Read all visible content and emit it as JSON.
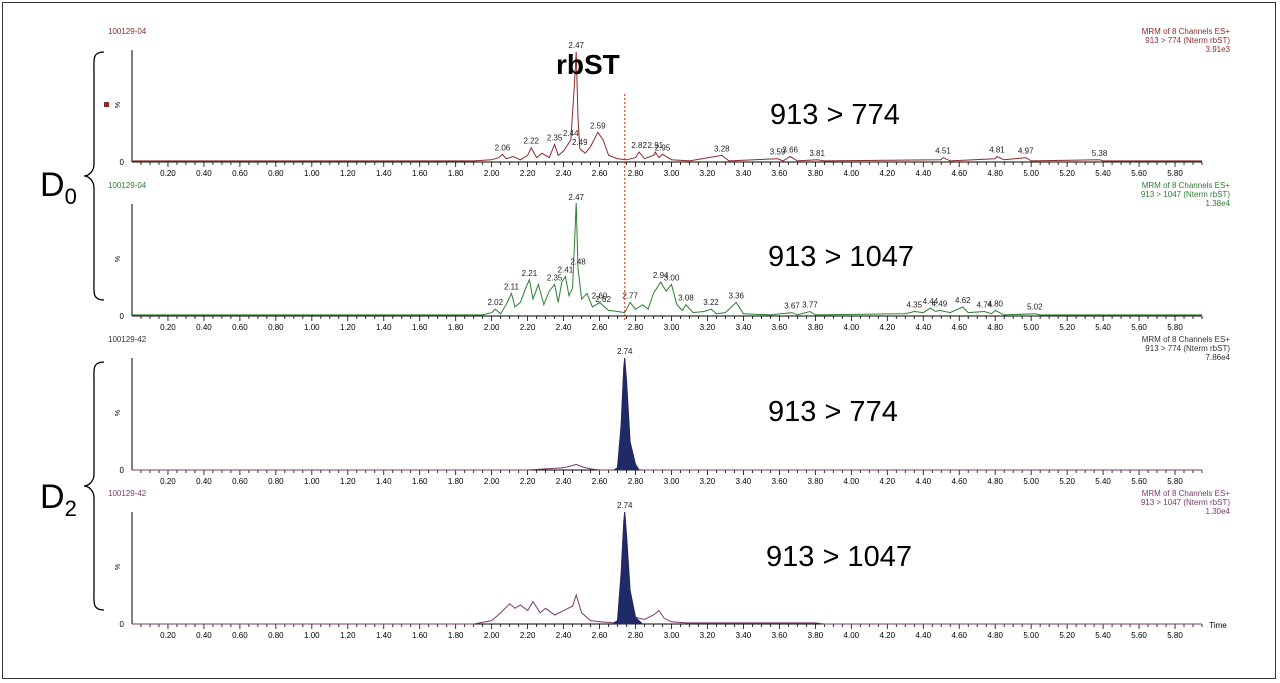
{
  "figure": {
    "compound_label": "rbST",
    "group_labels": [
      {
        "label": "D",
        "subscript": "0"
      },
      {
        "label": "D",
        "subscript": "2"
      }
    ],
    "x_axis_title": "Time"
  },
  "colors": {
    "d0_trace_774": "#8b2a2a",
    "d0_trace_1047": "#2e7d32",
    "d2_trace": "#7b3a6a",
    "peak_fill": "#1f2a66",
    "rt_marker": "#d9442b",
    "axis": "#000000",
    "header_text": "#8b2a2a",
    "header_text_green": "#2e7d32"
  },
  "chart_data": [
    {
      "type": "line",
      "sample": "100129-04",
      "transition": "913 > 774",
      "header": [
        "MRM of 8 Channels ES+",
        "913 > 774 (Nterm rbST)",
        "3.91e3"
      ],
      "ylabel": "%",
      "ytick": "0",
      "xlim": [
        0.0,
        5.95
      ],
      "ylim": [
        0,
        100
      ],
      "xticks": [
        "0.20",
        "0.40",
        "0.60",
        "0.80",
        "1.00",
        "1.20",
        "1.40",
        "1.60",
        "1.80",
        "2.00",
        "2.20",
        "2.40",
        "2.60",
        "2.80",
        "3.00",
        "3.20",
        "3.40",
        "3.60",
        "3.80",
        "4.00",
        "4.20",
        "4.40",
        "4.60",
        "4.80",
        "5.00",
        "5.20",
        "5.40",
        "5.60",
        "5.80"
      ],
      "peak_labels": [
        {
          "rt": 2.06,
          "text": "2.06"
        },
        {
          "rt": 2.22,
          "text": "2.22"
        },
        {
          "rt": 2.35,
          "text": "2.35"
        },
        {
          "rt": 2.44,
          "text": "2.44"
        },
        {
          "rt": 2.47,
          "text": "2.47"
        },
        {
          "rt": 2.49,
          "text": "2.49"
        },
        {
          "rt": 2.59,
          "text": "2.59"
        },
        {
          "rt": 2.82,
          "text": "2.82"
        },
        {
          "rt": 2.91,
          "text": "2.91"
        },
        {
          "rt": 2.95,
          "text": "2.95"
        },
        {
          "rt": 3.28,
          "text": "3.28"
        },
        {
          "rt": 3.59,
          "text": "3.59"
        },
        {
          "rt": 3.66,
          "text": "3.66"
        },
        {
          "rt": 3.81,
          "text": "3.81"
        },
        {
          "rt": 4.51,
          "text": "4.51"
        },
        {
          "rt": 4.81,
          "text": "4.81"
        },
        {
          "rt": 4.97,
          "text": "4.97"
        },
        {
          "rt": 5.38,
          "text": "5.38"
        }
      ],
      "trace": [
        [
          0,
          1
        ],
        [
          1.9,
          1
        ],
        [
          2.0,
          2
        ],
        [
          2.04,
          4
        ],
        [
          2.06,
          7
        ],
        [
          2.08,
          3
        ],
        [
          2.12,
          5
        ],
        [
          2.16,
          2
        ],
        [
          2.2,
          6
        ],
        [
          2.22,
          13
        ],
        [
          2.25,
          4
        ],
        [
          2.28,
          8
        ],
        [
          2.32,
          4
        ],
        [
          2.35,
          16
        ],
        [
          2.37,
          6
        ],
        [
          2.4,
          10
        ],
        [
          2.44,
          20
        ],
        [
          2.46,
          70
        ],
        [
          2.47,
          100
        ],
        [
          2.48,
          40
        ],
        [
          2.49,
          12
        ],
        [
          2.52,
          8
        ],
        [
          2.55,
          14
        ],
        [
          2.59,
          27
        ],
        [
          2.62,
          20
        ],
        [
          2.65,
          6
        ],
        [
          2.7,
          3
        ],
        [
          2.75,
          2
        ],
        [
          2.8,
          4
        ],
        [
          2.82,
          9
        ],
        [
          2.85,
          3
        ],
        [
          2.9,
          6
        ],
        [
          2.91,
          9
        ],
        [
          2.93,
          4
        ],
        [
          2.95,
          7
        ],
        [
          3.0,
          2
        ],
        [
          3.1,
          1
        ],
        [
          3.28,
          6
        ],
        [
          3.32,
          1
        ],
        [
          3.59,
          3
        ],
        [
          3.62,
          1
        ],
        [
          3.66,
          5
        ],
        [
          3.7,
          1
        ],
        [
          3.81,
          2
        ],
        [
          3.85,
          1
        ],
        [
          4.5,
          2
        ],
        [
          4.51,
          4
        ],
        [
          4.55,
          1
        ],
        [
          4.8,
          3
        ],
        [
          4.81,
          5
        ],
        [
          4.85,
          2
        ],
        [
          4.97,
          4
        ],
        [
          5.0,
          1
        ],
        [
          5.38,
          2
        ],
        [
          5.4,
          1
        ],
        [
          5.95,
          1
        ]
      ]
    },
    {
      "type": "line",
      "sample": "100129-04",
      "transition": "913 > 1047",
      "header": [
        "MRM of 8 Channels ES+",
        "913 > 1047 (Nterm rbST)",
        "1.38e4"
      ],
      "ylabel": "%",
      "ytick": "0",
      "xlim": [
        0.0,
        5.95
      ],
      "ylim": [
        0,
        100
      ],
      "xticks": [
        "0.20",
        "0.40",
        "0.60",
        "0.80",
        "1.00",
        "1.20",
        "1.40",
        "1.60",
        "1.80",
        "2.00",
        "2.20",
        "2.40",
        "2.60",
        "2.80",
        "3.00",
        "3.20",
        "3.40",
        "3.60",
        "3.80",
        "4.00",
        "4.20",
        "4.40",
        "4.60",
        "4.80",
        "5.00",
        "5.20",
        "5.40",
        "5.60",
        "5.80"
      ],
      "peak_labels": [
        {
          "rt": 2.02,
          "text": "2.02"
        },
        {
          "rt": 2.11,
          "text": "2.11"
        },
        {
          "rt": 2.21,
          "text": "2.21"
        },
        {
          "rt": 2.35,
          "text": "2.35"
        },
        {
          "rt": 2.41,
          "text": "2.41"
        },
        {
          "rt": 2.47,
          "text": "2.47"
        },
        {
          "rt": 2.48,
          "text": "2.48"
        },
        {
          "rt": 2.6,
          "text": "2.60"
        },
        {
          "rt": 2.62,
          "text": "2.62"
        },
        {
          "rt": 2.77,
          "text": "2.77"
        },
        {
          "rt": 2.94,
          "text": "2.94"
        },
        {
          "rt": 3.0,
          "text": "3.00"
        },
        {
          "rt": 3.08,
          "text": "3.08"
        },
        {
          "rt": 3.22,
          "text": "3.22"
        },
        {
          "rt": 3.36,
          "text": "3.36"
        },
        {
          "rt": 3.67,
          "text": "3.67"
        },
        {
          "rt": 3.77,
          "text": "3.77"
        },
        {
          "rt": 4.35,
          "text": "4.35"
        },
        {
          "rt": 4.44,
          "text": "4.44"
        },
        {
          "rt": 4.49,
          "text": "4.49"
        },
        {
          "rt": 4.62,
          "text": "4.62"
        },
        {
          "rt": 4.74,
          "text": "4.74"
        },
        {
          "rt": 4.8,
          "text": "4.80"
        },
        {
          "rt": 5.02,
          "text": "5.02"
        }
      ],
      "trace": [
        [
          0,
          1
        ],
        [
          1.95,
          1
        ],
        [
          2.0,
          3
        ],
        [
          2.02,
          6
        ],
        [
          2.05,
          2
        ],
        [
          2.08,
          10
        ],
        [
          2.11,
          20
        ],
        [
          2.13,
          8
        ],
        [
          2.16,
          12
        ],
        [
          2.19,
          25
        ],
        [
          2.21,
          32
        ],
        [
          2.23,
          15
        ],
        [
          2.26,
          28
        ],
        [
          2.29,
          10
        ],
        [
          2.32,
          22
        ],
        [
          2.35,
          28
        ],
        [
          2.37,
          12
        ],
        [
          2.39,
          30
        ],
        [
          2.41,
          35
        ],
        [
          2.43,
          18
        ],
        [
          2.45,
          25
        ],
        [
          2.47,
          100
        ],
        [
          2.48,
          42
        ],
        [
          2.5,
          15
        ],
        [
          2.53,
          20
        ],
        [
          2.56,
          8
        ],
        [
          2.6,
          12
        ],
        [
          2.62,
          9
        ],
        [
          2.65,
          5
        ],
        [
          2.7,
          4
        ],
        [
          2.74,
          3
        ],
        [
          2.77,
          12
        ],
        [
          2.8,
          6
        ],
        [
          2.84,
          10
        ],
        [
          2.87,
          6
        ],
        [
          2.9,
          20
        ],
        [
          2.94,
          30
        ],
        [
          2.97,
          22
        ],
        [
          3.0,
          28
        ],
        [
          3.03,
          10
        ],
        [
          3.06,
          5
        ],
        [
          3.08,
          10
        ],
        [
          3.12,
          3
        ],
        [
          3.18,
          4
        ],
        [
          3.22,
          6
        ],
        [
          3.25,
          2
        ],
        [
          3.3,
          3
        ],
        [
          3.36,
          12
        ],
        [
          3.4,
          2
        ],
        [
          3.55,
          1
        ],
        [
          3.67,
          3
        ],
        [
          3.7,
          1
        ],
        [
          3.77,
          4
        ],
        [
          3.8,
          1
        ],
        [
          4.3,
          2
        ],
        [
          4.35,
          4
        ],
        [
          4.4,
          3
        ],
        [
          4.44,
          7
        ],
        [
          4.47,
          4
        ],
        [
          4.49,
          5
        ],
        [
          4.55,
          3
        ],
        [
          4.62,
          8
        ],
        [
          4.65,
          3
        ],
        [
          4.74,
          4
        ],
        [
          4.78,
          2
        ],
        [
          4.8,
          5
        ],
        [
          4.85,
          1
        ],
        [
          5.02,
          2
        ],
        [
          5.05,
          1
        ],
        [
          5.95,
          1
        ]
      ]
    },
    {
      "type": "area",
      "sample": "100129-42",
      "transition": "913 > 774",
      "header": [
        "MRM of 8 Channels ES+",
        "913 > 774 (Nterm rbST)",
        "7.86e4"
      ],
      "ylabel": "%",
      "ytick": "0",
      "xlim": [
        0.0,
        5.95
      ],
      "ylim": [
        0,
        100
      ],
      "xticks": [
        "0.20",
        "0.40",
        "0.60",
        "0.80",
        "1.00",
        "1.20",
        "1.40",
        "1.60",
        "1.80",
        "2.00",
        "2.20",
        "2.40",
        "2.60",
        "2.80",
        "3.00",
        "3.20",
        "3.40",
        "3.60",
        "3.80",
        "4.00",
        "4.20",
        "4.40",
        "4.60",
        "4.80",
        "5.00",
        "5.20",
        "5.40",
        "5.60",
        "5.80"
      ],
      "peak_labels": [
        {
          "rt": 2.74,
          "text": "2.74"
        }
      ],
      "trace": [
        [
          0,
          0
        ],
        [
          2.2,
          0
        ],
        [
          2.3,
          1
        ],
        [
          2.4,
          2
        ],
        [
          2.45,
          4
        ],
        [
          2.47,
          5
        ],
        [
          2.5,
          3
        ],
        [
          2.55,
          1
        ],
        [
          2.6,
          0
        ],
        [
          2.68,
          0
        ],
        [
          2.7,
          2
        ],
        [
          2.72,
          40
        ],
        [
          2.735,
          92
        ],
        [
          2.74,
          100
        ],
        [
          2.75,
          80
        ],
        [
          2.77,
          25
        ],
        [
          2.8,
          5
        ],
        [
          2.82,
          0
        ],
        [
          5.95,
          0
        ]
      ],
      "filled_peak": [
        2.68,
        2.84
      ]
    },
    {
      "type": "area",
      "sample": "100129-42",
      "transition": "913 > 1047",
      "header": [
        "MRM of 8 Channels ES+",
        "913 > 1047 (Nterm rbST)",
        "1.30e4"
      ],
      "ylabel": "%",
      "ytick": "0",
      "xlim": [
        0.0,
        5.95
      ],
      "ylim": [
        0,
        100
      ],
      "xticks": [
        "0.20",
        "0.40",
        "0.60",
        "0.80",
        "1.00",
        "1.20",
        "1.40",
        "1.60",
        "1.80",
        "2.00",
        "2.20",
        "2.40",
        "2.60",
        "2.80",
        "3.00",
        "3.20",
        "3.40",
        "3.60",
        "3.80",
        "4.00",
        "4.20",
        "4.40",
        "4.60",
        "4.80",
        "5.00",
        "5.20",
        "5.40",
        "5.60",
        "5.80"
      ],
      "peak_labels": [
        {
          "rt": 2.74,
          "text": "2.74"
        }
      ],
      "trace": [
        [
          0,
          0
        ],
        [
          1.9,
          0
        ],
        [
          2.0,
          3
        ],
        [
          2.05,
          10
        ],
        [
          2.1,
          18
        ],
        [
          2.13,
          14
        ],
        [
          2.16,
          17
        ],
        [
          2.2,
          12
        ],
        [
          2.23,
          20
        ],
        [
          2.27,
          10
        ],
        [
          2.3,
          14
        ],
        [
          2.35,
          8
        ],
        [
          2.4,
          12
        ],
        [
          2.45,
          16
        ],
        [
          2.47,
          26
        ],
        [
          2.5,
          10
        ],
        [
          2.55,
          3
        ],
        [
          2.6,
          2
        ],
        [
          2.68,
          1
        ],
        [
          2.7,
          3
        ],
        [
          2.72,
          45
        ],
        [
          2.735,
          92
        ],
        [
          2.74,
          100
        ],
        [
          2.75,
          80
        ],
        [
          2.77,
          30
        ],
        [
          2.8,
          6
        ],
        [
          2.85,
          4
        ],
        [
          2.9,
          8
        ],
        [
          2.93,
          12
        ],
        [
          2.96,
          5
        ],
        [
          3.0,
          2
        ],
        [
          3.08,
          1
        ],
        [
          3.8,
          1
        ],
        [
          3.85,
          0
        ],
        [
          5.95,
          0
        ]
      ],
      "filled_peak": [
        2.68,
        2.84
      ]
    }
  ],
  "transition_labels": [
    "913 > 774",
    "913 > 1047",
    "913 > 774",
    "913 > 1047"
  ]
}
